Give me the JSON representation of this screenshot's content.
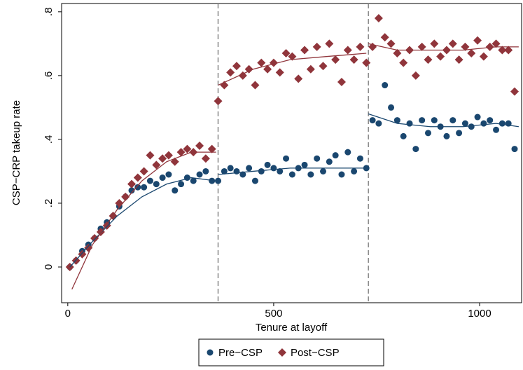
{
  "chart_data": {
    "type": "scatter",
    "xlabel": "Tenure at layoff",
    "ylabel": "CSP−CRP takeup rate",
    "xlim": [
      -15,
      1102
    ],
    "ylim": [
      -0.112,
      0.826
    ],
    "xticks": [
      0,
      500,
      1000
    ],
    "yticks": [
      0,
      {
        "value": 0.2,
        "label": ".2"
      },
      {
        "value": 0.4,
        "label": ".4"
      },
      {
        "value": 0.6,
        "label": ".6"
      },
      {
        "value": 0.8,
        "label": ".8"
      }
    ],
    "xlines": [
      365,
      730
    ],
    "grid": false,
    "legend": "bottom",
    "x": [
      5,
      20,
      35,
      50,
      65,
      80,
      95,
      110,
      125,
      140,
      155,
      170,
      185,
      200,
      215,
      230,
      245,
      260,
      275,
      290,
      305,
      320,
      335,
      350,
      365,
      380,
      395,
      410,
      425,
      440,
      455,
      470,
      485,
      500,
      515,
      530,
      545,
      560,
      575,
      590,
      605,
      620,
      635,
      650,
      665,
      680,
      695,
      710,
      725,
      740,
      755,
      770,
      785,
      800,
      815,
      830,
      845,
      860,
      875,
      890,
      905,
      920,
      935,
      950,
      965,
      980,
      995,
      1010,
      1025,
      1040,
      1055,
      1070,
      1085
    ],
    "series": [
      {
        "name": "Pre−CSP",
        "color": "#1a476f",
        "marker": "circle",
        "values": [
          0.0,
          0.02,
          0.05,
          0.07,
          0.09,
          0.12,
          0.14,
          0.16,
          0.19,
          0.22,
          0.24,
          0.25,
          0.25,
          0.27,
          0.26,
          0.28,
          0.29,
          0.24,
          0.26,
          0.28,
          0.27,
          0.29,
          0.3,
          0.27,
          0.27,
          0.3,
          0.31,
          0.3,
          0.29,
          0.31,
          0.27,
          0.3,
          0.32,
          0.31,
          0.3,
          0.34,
          0.29,
          0.31,
          0.32,
          0.29,
          0.34,
          0.3,
          0.33,
          0.35,
          0.29,
          0.36,
          0.3,
          0.34,
          0.31,
          0.46,
          0.45,
          0.57,
          0.5,
          0.46,
          0.41,
          0.45,
          0.37,
          0.46,
          0.42,
          0.46,
          0.44,
          0.41,
          0.46,
          0.42,
          0.45,
          0.44,
          0.47,
          0.45,
          0.46,
          0.43,
          0.45,
          0.45,
          0.37
        ]
      },
      {
        "name": "Post−CSP",
        "color": "#90353b",
        "marker": "diamond",
        "values": [
          0.0,
          0.02,
          0.04,
          0.06,
          0.09,
          0.11,
          0.13,
          0.16,
          0.2,
          0.22,
          0.26,
          0.28,
          0.3,
          0.35,
          0.32,
          0.34,
          0.35,
          0.33,
          0.36,
          0.37,
          0.36,
          0.38,
          0.34,
          0.37,
          0.52,
          0.57,
          0.61,
          0.63,
          0.6,
          0.62,
          0.57,
          0.64,
          0.62,
          0.64,
          0.61,
          0.67,
          0.66,
          0.59,
          0.68,
          0.62,
          0.69,
          0.63,
          0.7,
          0.65,
          0.58,
          0.68,
          0.65,
          0.69,
          0.64,
          0.69,
          0.78,
          0.72,
          0.7,
          0.67,
          0.64,
          0.68,
          0.6,
          0.69,
          0.65,
          0.7,
          0.66,
          0.68,
          0.7,
          0.65,
          0.69,
          0.67,
          0.71,
          0.66,
          0.69,
          0.7,
          0.68,
          0.68,
          0.55
        ]
      }
    ],
    "fit_lines": [
      {
        "color": "#1a476f",
        "x": [
          5,
          60,
          120,
          180,
          240,
          300,
          360
        ],
        "values": [
          0.0,
          0.08,
          0.16,
          0.22,
          0.26,
          0.28,
          0.27
        ]
      },
      {
        "color": "#90353b",
        "x": [
          10,
          60,
          120,
          180,
          240,
          300,
          360
        ],
        "values": [
          -0.07,
          0.07,
          0.18,
          0.27,
          0.33,
          0.36,
          0.36
        ]
      },
      {
        "color": "#1a476f",
        "x": [
          365,
          450,
          540,
          630,
          725
        ],
        "values": [
          0.29,
          0.3,
          0.31,
          0.31,
          0.31
        ]
      },
      {
        "color": "#90353b",
        "x": [
          365,
          450,
          540,
          630,
          725
        ],
        "values": [
          0.57,
          0.62,
          0.65,
          0.66,
          0.67
        ]
      },
      {
        "color": "#1a476f",
        "x": [
          730,
          800,
          880,
          960,
          1040,
          1095
        ],
        "values": [
          0.48,
          0.45,
          0.44,
          0.44,
          0.45,
          0.44
        ]
      },
      {
        "color": "#90353b",
        "x": [
          730,
          800,
          880,
          960,
          1040,
          1095
        ],
        "values": [
          0.7,
          0.68,
          0.68,
          0.68,
          0.69,
          0.69
        ]
      }
    ]
  }
}
